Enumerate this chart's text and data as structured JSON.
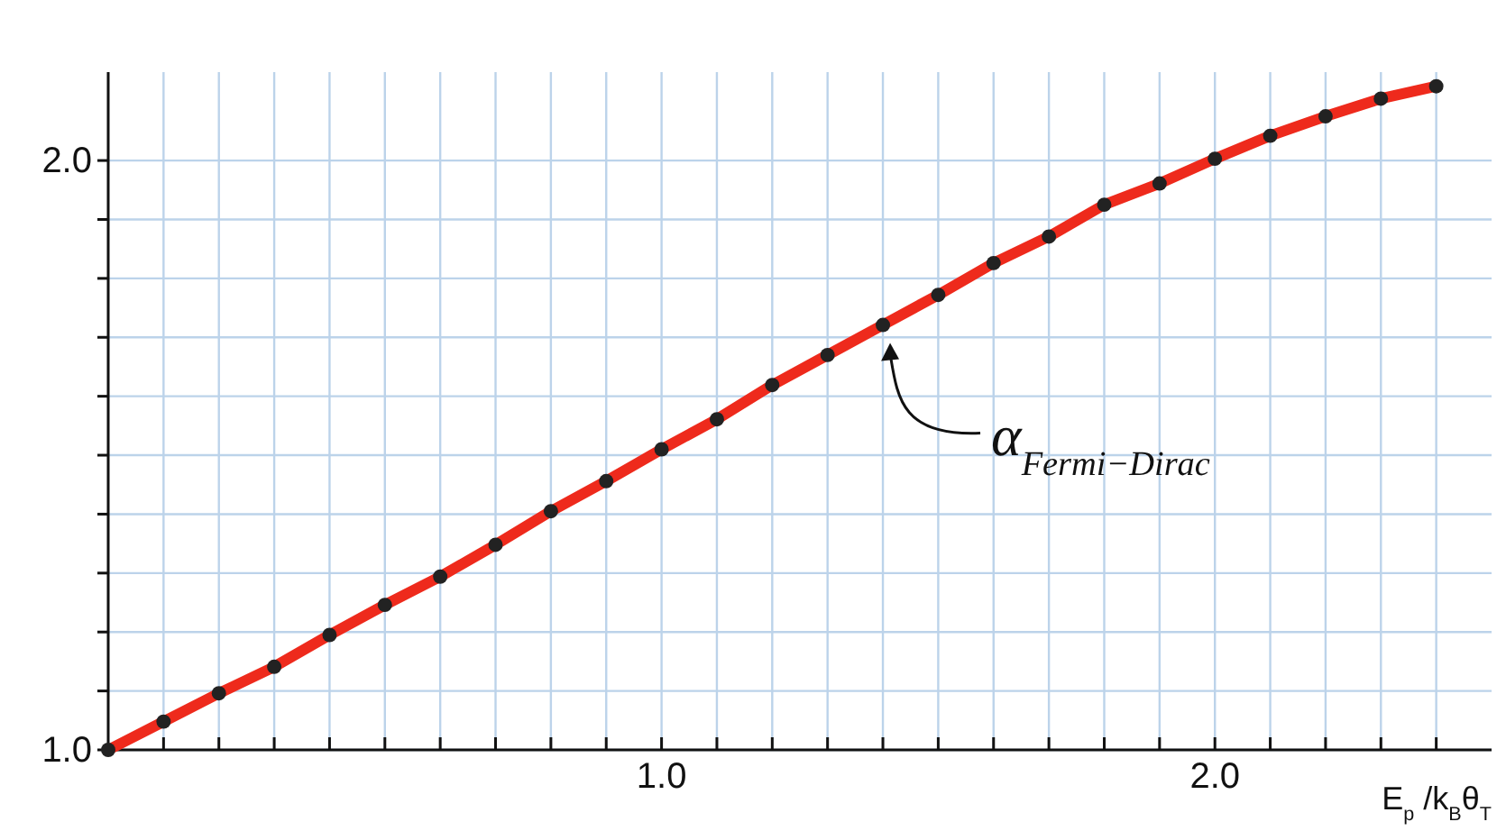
{
  "chart_data": {
    "type": "line",
    "x": [
      0,
      0.1,
      0.2,
      0.3,
      0.4,
      0.5,
      0.6,
      0.7,
      0.8,
      0.9,
      1.0,
      1.1,
      1.2,
      1.3,
      1.4,
      1.5,
      1.6,
      1.7,
      1.8,
      1.9,
      2.0,
      2.1,
      2.2,
      2.3,
      2.4
    ],
    "series": [
      {
        "color": "#ee2a1c",
        "values": [
          1.0,
          1.048,
          1.096,
          1.141,
          1.195,
          1.246,
          1.294,
          1.348,
          1.405,
          1.456,
          1.51,
          1.561,
          1.619,
          1.67,
          1.721,
          1.772,
          1.826,
          1.871,
          1.925,
          1.961,
          2.003,
          2.042,
          2.075,
          2.105,
          2.126
        ]
      }
    ],
    "xlabel": "E$_{p}$ /k$_{B}$θ$_{T}$",
    "xlim": [
      0,
      2.5
    ],
    "ylim": [
      1.0,
      2.15
    ],
    "xticks": [
      {
        "value": 0.1,
        "label": null
      },
      {
        "value": 0.2,
        "label": null
      },
      {
        "value": 0.3,
        "label": null
      },
      {
        "value": 0.4,
        "label": null
      },
      {
        "value": 0.5,
        "label": null
      },
      {
        "value": 0.6,
        "label": null
      },
      {
        "value": 0.7,
        "label": null
      },
      {
        "value": 0.8,
        "label": null
      },
      {
        "value": 0.9,
        "label": null
      },
      {
        "value": 1.0,
        "label": "1.0"
      },
      {
        "value": 1.1,
        "label": null
      },
      {
        "value": 1.2,
        "label": null
      },
      {
        "value": 1.3,
        "label": null
      },
      {
        "value": 1.4,
        "label": null
      },
      {
        "value": 1.5,
        "label": null
      },
      {
        "value": 1.6,
        "label": null
      },
      {
        "value": 1.7,
        "label": null
      },
      {
        "value": 1.8,
        "label": null
      },
      {
        "value": 1.9,
        "label": null
      },
      {
        "value": 2.0,
        "label": "2.0"
      },
      {
        "value": 2.1,
        "label": null
      },
      {
        "value": 2.2,
        "label": null
      },
      {
        "value": 2.3,
        "label": null
      },
      {
        "value": 2.4,
        "label": null
      }
    ],
    "yticks": [
      {
        "value": 1.0,
        "label": "1.0"
      },
      {
        "value": 1.1,
        "label": null
      },
      {
        "value": 1.2,
        "label": null
      },
      {
        "value": 1.3,
        "label": null
      },
      {
        "value": 1.4,
        "label": null
      },
      {
        "value": 1.5,
        "label": null
      },
      {
        "value": 1.6,
        "label": null
      },
      {
        "value": 1.7,
        "label": null
      },
      {
        "value": 1.8,
        "label": null
      },
      {
        "value": 1.9,
        "label": null
      },
      {
        "value": 2.0,
        "label": "2.0"
      }
    ],
    "grid": true,
    "marker": "circle",
    "line_style": "solid",
    "annotations": [
      {
        "text": "α$_{Fermi−Dirac}$",
        "x": 1.4,
        "y": 1.721
      }
    ]
  }
}
